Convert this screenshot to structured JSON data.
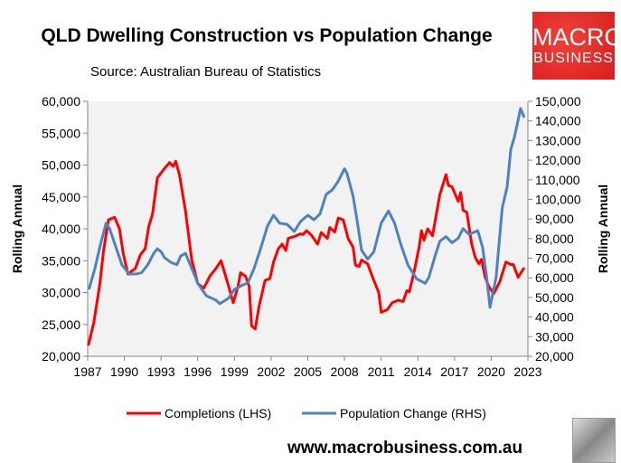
{
  "title": "QLD Dwelling Construction vs Population Change",
  "source": "Source: Australian Bureau of Statistics",
  "logo": {
    "line1": "MACRO",
    "line2": "BUSINESS",
    "color": "#e02424"
  },
  "url": "www.macrobusiness.com.au",
  "chart_data": {
    "type": "line",
    "title": "QLD Dwelling Construction vs Population Change",
    "xlim": [
      1987,
      2023
    ],
    "x_ticks": [
      "1987",
      "1990",
      "1993",
      "1996",
      "1999",
      "2002",
      "2005",
      "2008",
      "2011",
      "2014",
      "2017",
      "2020",
      "2023"
    ],
    "y_left": {
      "label": "Rolling Annual",
      "lim": [
        20000,
        60000
      ],
      "ticks": [
        "20,000",
        "25,000",
        "30,000",
        "35,000",
        "40,000",
        "45,000",
        "50,000",
        "55,000",
        "60,000"
      ]
    },
    "y_right": {
      "label": "Rolling Annual",
      "lim": [
        20000,
        150000
      ],
      "ticks": [
        "20,000",
        "30,000",
        "40,000",
        "50,000",
        "60,000",
        "70,000",
        "80,000",
        "90,000",
        "100,000",
        "110,000",
        "120,000",
        "130,000",
        "140,000",
        "150,000"
      ]
    },
    "grid": false,
    "legend": "bottom",
    "series": [
      {
        "name": "Completions (LHS)",
        "axis": "left",
        "color": "#ff0000",
        "points": [
          [
            1987.05,
            21700
          ],
          [
            1987.5,
            25300
          ],
          [
            1988.0,
            31400
          ],
          [
            1988.3,
            36600
          ],
          [
            1988.7,
            41400
          ],
          [
            1989.2,
            41800
          ],
          [
            1989.6,
            40000
          ],
          [
            1989.9,
            36200
          ],
          [
            1990.3,
            32900
          ],
          [
            1990.9,
            33800
          ],
          [
            1991.3,
            35900
          ],
          [
            1991.7,
            36900
          ],
          [
            1992.0,
            40400
          ],
          [
            1992.3,
            42300
          ],
          [
            1992.7,
            48000
          ],
          [
            1993.3,
            49500
          ],
          [
            1993.7,
            50400
          ],
          [
            1994.0,
            49800
          ],
          [
            1994.2,
            50600
          ],
          [
            1994.5,
            48500
          ],
          [
            1995.0,
            42800
          ],
          [
            1995.5,
            35200
          ],
          [
            1996.0,
            31400
          ],
          [
            1996.5,
            30700
          ],
          [
            1997.0,
            32600
          ],
          [
            1997.5,
            33800
          ],
          [
            1997.9,
            35000
          ],
          [
            1998.2,
            33100
          ],
          [
            1998.6,
            30500
          ],
          [
            1998.9,
            28400
          ],
          [
            1999.3,
            31000
          ],
          [
            1999.5,
            33100
          ],
          [
            1999.9,
            32600
          ],
          [
            2000.2,
            31000
          ],
          [
            2000.4,
            24800
          ],
          [
            2000.7,
            24300
          ],
          [
            2001.0,
            27700
          ],
          [
            2001.5,
            31900
          ],
          [
            2001.9,
            32200
          ],
          [
            2002.2,
            34800
          ],
          [
            2002.6,
            36900
          ],
          [
            2002.9,
            37600
          ],
          [
            2003.2,
            36600
          ],
          [
            2003.4,
            38500
          ],
          [
            2003.9,
            38800
          ],
          [
            2004.4,
            39200
          ],
          [
            2004.6,
            39100
          ],
          [
            2004.9,
            39700
          ],
          [
            2005.3,
            39000
          ],
          [
            2005.8,
            37600
          ],
          [
            2006.1,
            39400
          ],
          [
            2006.6,
            38500
          ],
          [
            2006.8,
            40200
          ],
          [
            2007.2,
            39500
          ],
          [
            2007.5,
            41700
          ],
          [
            2007.9,
            41400
          ],
          [
            2008.3,
            38500
          ],
          [
            2008.7,
            37100
          ],
          [
            2008.9,
            34300
          ],
          [
            2009.2,
            34100
          ],
          [
            2009.4,
            35100
          ],
          [
            2009.9,
            34500
          ],
          [
            2010.3,
            32400
          ],
          [
            2010.8,
            30000
          ],
          [
            2011.0,
            26900
          ],
          [
            2011.5,
            27300
          ],
          [
            2011.9,
            28400
          ],
          [
            2012.4,
            28800
          ],
          [
            2012.8,
            28600
          ],
          [
            2013.1,
            30300
          ],
          [
            2013.3,
            30100
          ],
          [
            2013.7,
            33300
          ],
          [
            2014.1,
            37100
          ],
          [
            2014.3,
            39700
          ],
          [
            2014.5,
            38200
          ],
          [
            2014.8,
            40000
          ],
          [
            2015.2,
            38900
          ],
          [
            2015.8,
            45400
          ],
          [
            2016.3,
            48500
          ],
          [
            2016.5,
            46800
          ],
          [
            2016.8,
            46600
          ],
          [
            2017.3,
            44300
          ],
          [
            2017.5,
            45700
          ],
          [
            2017.7,
            42900
          ],
          [
            2018.0,
            42600
          ],
          [
            2018.4,
            37600
          ],
          [
            2018.7,
            35500
          ],
          [
            2019.0,
            34500
          ],
          [
            2019.2,
            35200
          ],
          [
            2019.5,
            32400
          ],
          [
            2019.8,
            31000
          ],
          [
            2020.2,
            29800
          ],
          [
            2020.7,
            31700
          ],
          [
            2021.2,
            34800
          ],
          [
            2021.6,
            34400
          ],
          [
            2021.8,
            34400
          ],
          [
            2022.2,
            32400
          ],
          [
            2022.7,
            33900
          ]
        ]
      },
      {
        "name": "Population Change (RHS)",
        "axis": "right",
        "color": "#4f81bd",
        "points": [
          [
            1987.1,
            54100
          ],
          [
            1987.6,
            64900
          ],
          [
            1988.0,
            75800
          ],
          [
            1988.5,
            87800
          ],
          [
            1988.8,
            85000
          ],
          [
            1989.3,
            75800
          ],
          [
            1989.8,
            66600
          ],
          [
            1990.4,
            61900
          ],
          [
            1991.0,
            62000
          ],
          [
            1991.4,
            62600
          ],
          [
            1991.9,
            66500
          ],
          [
            1992.4,
            72500
          ],
          [
            1992.7,
            74800
          ],
          [
            1993.0,
            73300
          ],
          [
            1993.3,
            70200
          ],
          [
            1993.8,
            67900
          ],
          [
            1994.3,
            66700
          ],
          [
            1994.6,
            71100
          ],
          [
            1995.0,
            72500
          ],
          [
            1995.4,
            66500
          ],
          [
            1996.0,
            57300
          ],
          [
            1996.7,
            50900
          ],
          [
            1997.5,
            48600
          ],
          [
            1997.8,
            46800
          ],
          [
            1998.5,
            49500
          ],
          [
            1999.0,
            54100
          ],
          [
            1999.7,
            56400
          ],
          [
            2000.1,
            57300
          ],
          [
            2000.6,
            64700
          ],
          [
            2001.1,
            74000
          ],
          [
            2001.7,
            86400
          ],
          [
            2002.2,
            91900
          ],
          [
            2002.7,
            87800
          ],
          [
            2003.3,
            87300
          ],
          [
            2003.9,
            83600
          ],
          [
            2004.4,
            88700
          ],
          [
            2005.0,
            91900
          ],
          [
            2005.5,
            89600
          ],
          [
            2006.0,
            92500
          ],
          [
            2006.5,
            102500
          ],
          [
            2007.0,
            104800
          ],
          [
            2007.5,
            109400
          ],
          [
            2008.0,
            115600
          ],
          [
            2008.2,
            113300
          ],
          [
            2008.7,
            101700
          ],
          [
            2009.1,
            86400
          ],
          [
            2009.4,
            74100
          ],
          [
            2009.9,
            69500
          ],
          [
            2010.4,
            73300
          ],
          [
            2011.0,
            87900
          ],
          [
            2011.6,
            94100
          ],
          [
            2012.1,
            87900
          ],
          [
            2012.6,
            77200
          ],
          [
            2013.2,
            66400
          ],
          [
            2013.9,
            59500
          ],
          [
            2014.6,
            57200
          ],
          [
            2014.9,
            60200
          ],
          [
            2015.4,
            71000
          ],
          [
            2015.8,
            78700
          ],
          [
            2016.3,
            81000
          ],
          [
            2016.8,
            77900
          ],
          [
            2017.3,
            80200
          ],
          [
            2017.7,
            85100
          ],
          [
            2018.2,
            82100
          ],
          [
            2018.9,
            84100
          ],
          [
            2019.3,
            75600
          ],
          [
            2019.6,
            61800
          ],
          [
            2019.9,
            44900
          ],
          [
            2020.4,
            60200
          ],
          [
            2020.9,
            95600
          ],
          [
            2021.3,
            106300
          ],
          [
            2021.6,
            125600
          ],
          [
            2021.9,
            131700
          ],
          [
            2022.4,
            146300
          ],
          [
            2022.7,
            141700
          ]
        ]
      }
    ]
  }
}
